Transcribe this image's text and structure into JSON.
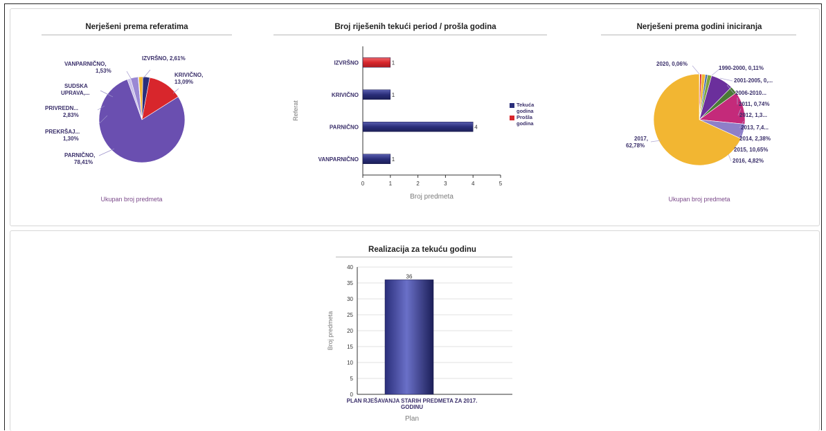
{
  "colors": {
    "navy": "#2a2e7a",
    "red": "#d8262c",
    "purple": "#6a4fb0",
    "gold": "#f2b632",
    "light_purple": "#8e7fc8",
    "pink": "#c42a7a",
    "olive": "#7da33c",
    "violet": "#6b2f9c",
    "dark_green": "#4a7a35"
  },
  "chart_data": [
    {
      "type": "pie",
      "title": "Nerješeni prema referatima",
      "caption": "Ukupan broj predmeta",
      "slices": [
        {
          "label": "IZVRŠNO, 2,61%",
          "value": 2.61,
          "color": "#2a2e7a"
        },
        {
          "label": "KRIVIČNO, 13,09%",
          "value": 13.09,
          "color": "#d8262c"
        },
        {
          "label": "PARNIČNO, 78,41%",
          "value": 78.41,
          "color": "#6a4fb0"
        },
        {
          "label": "PREKRŠAJ..., 1,30%",
          "value": 1.3,
          "color": "#c9c0ea"
        },
        {
          "label": "PRIVREDN..., 2,83%",
          "value": 2.83,
          "color": "#9a88d4"
        },
        {
          "label": "SUDSKA UPRAVA,...",
          "value": 0.23,
          "color": "#4f6fb0"
        },
        {
          "label": "VANPARNIČNO, 1,53%",
          "value": 1.53,
          "color": "#f2b632"
        }
      ]
    },
    {
      "type": "bar",
      "orientation": "horizontal",
      "title": "Broj riješenih tekući period / prošla godina",
      "xlabel": "Broj predmeta",
      "ylabel": "Referat",
      "categories": [
        "IZVRŠNO",
        "KRIVIČNO",
        "PARNIČNO",
        "VANPARNIČNO"
      ],
      "xlim": [
        0,
        5
      ],
      "xticks": [
        "0",
        "1",
        "2",
        "3",
        "4",
        "5"
      ],
      "series": [
        {
          "name": "Tekuća godina",
          "values": [
            null,
            1,
            4,
            1
          ],
          "color": "#2a2e7a"
        },
        {
          "name": "Prošla godina",
          "values": [
            1,
            null,
            null,
            null
          ],
          "color": "#d8262c"
        }
      ],
      "data_labels": {
        "IZVRŠNO": "1",
        "KRIVIČNO": "1",
        "PARNIČNO": "4",
        "VANPARNIČNO": "1"
      },
      "legend": "right"
    },
    {
      "type": "pie",
      "title": "Nerješeni prema godini iniciranja",
      "caption": "Ukupan broj predmeta",
      "slices": [
        {
          "label": "1990-2000, 0,11%",
          "value": 0.11,
          "color": "#2a2e7a"
        },
        {
          "label": "2001-2005, 0,...",
          "value": 0.6,
          "color": "#d8262c"
        },
        {
          "label": "2006-2010...",
          "value": 1.2,
          "color": "#f2b632"
        },
        {
          "label": "2011, 0,74%",
          "value": 0.74,
          "color": "#4f6fb0"
        },
        {
          "label": "2012, 1,3...",
          "value": 1.3,
          "color": "#7da33c"
        },
        {
          "label": "2013, 7,4...",
          "value": 7.4,
          "color": "#6b2f9c"
        },
        {
          "label": "2014, 2,38%",
          "value": 2.38,
          "color": "#4a7a35"
        },
        {
          "label": "2015, 10,65%",
          "value": 10.65,
          "color": "#c42a7a"
        },
        {
          "label": "2016, 4,82%",
          "value": 4.82,
          "color": "#8e7fc8"
        },
        {
          "label": "2017, 62,78%",
          "value": 62.78,
          "color": "#f2b632"
        },
        {
          "label": "2020, 0,06%",
          "value": 0.06,
          "color": "#2a2e7a"
        }
      ]
    },
    {
      "type": "bar",
      "orientation": "vertical",
      "title": "Realizacija za tekuću godinu",
      "xlabel": "Plan",
      "ylabel": "Broj predmeta",
      "categories": [
        "PLAN RJEŠAVANJA STARIH PREDMETA ZA 2017. GODINU"
      ],
      "values": [
        36
      ],
      "data_labels": [
        "36"
      ],
      "ylim": [
        0,
        40
      ],
      "yticks": [
        "0",
        "5",
        "10",
        "15",
        "20",
        "25",
        "30",
        "35",
        "40"
      ],
      "grid": true
    }
  ],
  "legend_labels": {
    "current_line1": "Tekuća",
    "current_line2": "godina",
    "previous_line1": "Prošla",
    "previous_line2": "godina"
  },
  "pie1_labels": {
    "izvrsno": "IZVRŠNO, 2,61%",
    "krivicno_1": "KRIVIČNO,",
    "krivicno_2": "13,09%",
    "vanparnicno_1": "VANPARNIČNO,",
    "vanparnicno_2": "1,53%",
    "sudska_1": "SUDSKA",
    "sudska_2": "UPRAVA,...",
    "privredn_1": "PRIVREDN...",
    "privredn_2": "2,83%",
    "prekrsaj_1": "PREKRŠAJ...",
    "prekrsaj_2": "1,30%",
    "parnicno_1": "PARNIČNO,",
    "parnicno_2": "78,41%"
  },
  "pie2_labels": {
    "y2020": "2020, 0,06%",
    "y1990": "1990-2000, 0,11%",
    "y2001": "2001-2005, 0,...",
    "y2006": "2006-2010...",
    "y2011": "2011, 0,74%",
    "y2012": "2012, 1,3...",
    "y2013": "2013, 7,4...",
    "y2014": "2014, 2,38%",
    "y2015": "2015, 10,65%",
    "y2016": "2016, 4,82%",
    "y2017_1": "2017,",
    "y2017_2": "62,78%"
  },
  "bar2_category_lines": [
    "PLAN RJEŠAVANJA STARIH PREDMETA ZA 2017.",
    "GODINU"
  ]
}
